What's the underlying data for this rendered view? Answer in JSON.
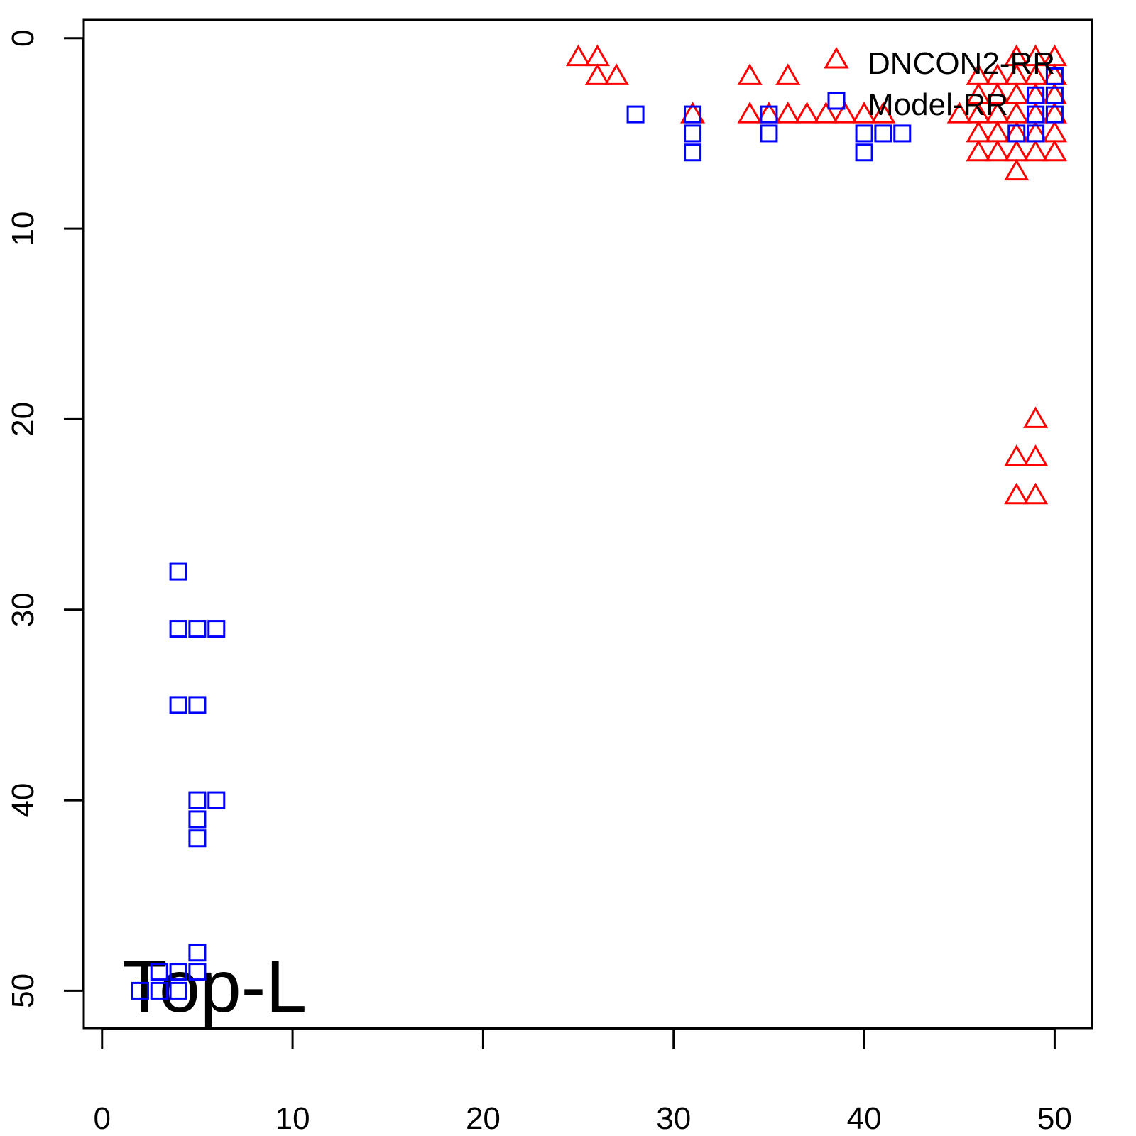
{
  "chart_data": {
    "type": "scatter",
    "annotation": "Top-L",
    "legend": "topright",
    "xlim": [
      -0.96,
      51.96
    ],
    "ylim": [
      51.96,
      -0.96
    ],
    "xticks": [
      0,
      10,
      20,
      30,
      40,
      50
    ],
    "yticks": [
      0,
      10,
      20,
      30,
      40,
      50
    ],
    "series": [
      {
        "name": "DNCON2-RR",
        "color": "#ff0000",
        "marker": "triangle",
        "x": [
          25,
          26,
          26,
          27,
          31,
          34,
          36,
          34,
          35,
          36,
          37,
          38,
          39,
          40,
          41,
          45,
          46,
          46,
          46,
          46,
          46,
          47,
          47,
          47,
          47,
          47,
          48,
          48,
          48,
          48,
          48,
          48,
          48,
          49,
          49,
          49,
          49,
          49,
          49,
          50,
          50,
          50,
          50,
          50,
          50,
          49,
          48,
          49,
          48,
          49
        ],
        "y": [
          1,
          1,
          2,
          2,
          4,
          2,
          2,
          4,
          4,
          4,
          4,
          4,
          4,
          4,
          4,
          4,
          2,
          3,
          4,
          5,
          6,
          2,
          3,
          4,
          5,
          6,
          1,
          2,
          3,
          4,
          5,
          6,
          7,
          1,
          2,
          3,
          4,
          5,
          6,
          1,
          2,
          3,
          4,
          5,
          6,
          20,
          22,
          22,
          24,
          24
        ]
      },
      {
        "name": "Model-RR",
        "color": "#0000ff",
        "marker": "square",
        "x": [
          28,
          31,
          31,
          31,
          35,
          35,
          40,
          40,
          41,
          42,
          48,
          49,
          49,
          49,
          50,
          50,
          50,
          4,
          4,
          5,
          6,
          4,
          5,
          5,
          6,
          5,
          5,
          5,
          3,
          4,
          5,
          2,
          3,
          4
        ],
        "y": [
          4,
          4,
          5,
          6,
          4,
          5,
          5,
          6,
          5,
          5,
          5,
          3,
          4,
          5,
          2,
          3,
          4,
          28,
          31,
          31,
          31,
          35,
          35,
          40,
          40,
          41,
          42,
          48,
          49,
          49,
          49,
          50,
          50,
          50
        ]
      }
    ]
  }
}
